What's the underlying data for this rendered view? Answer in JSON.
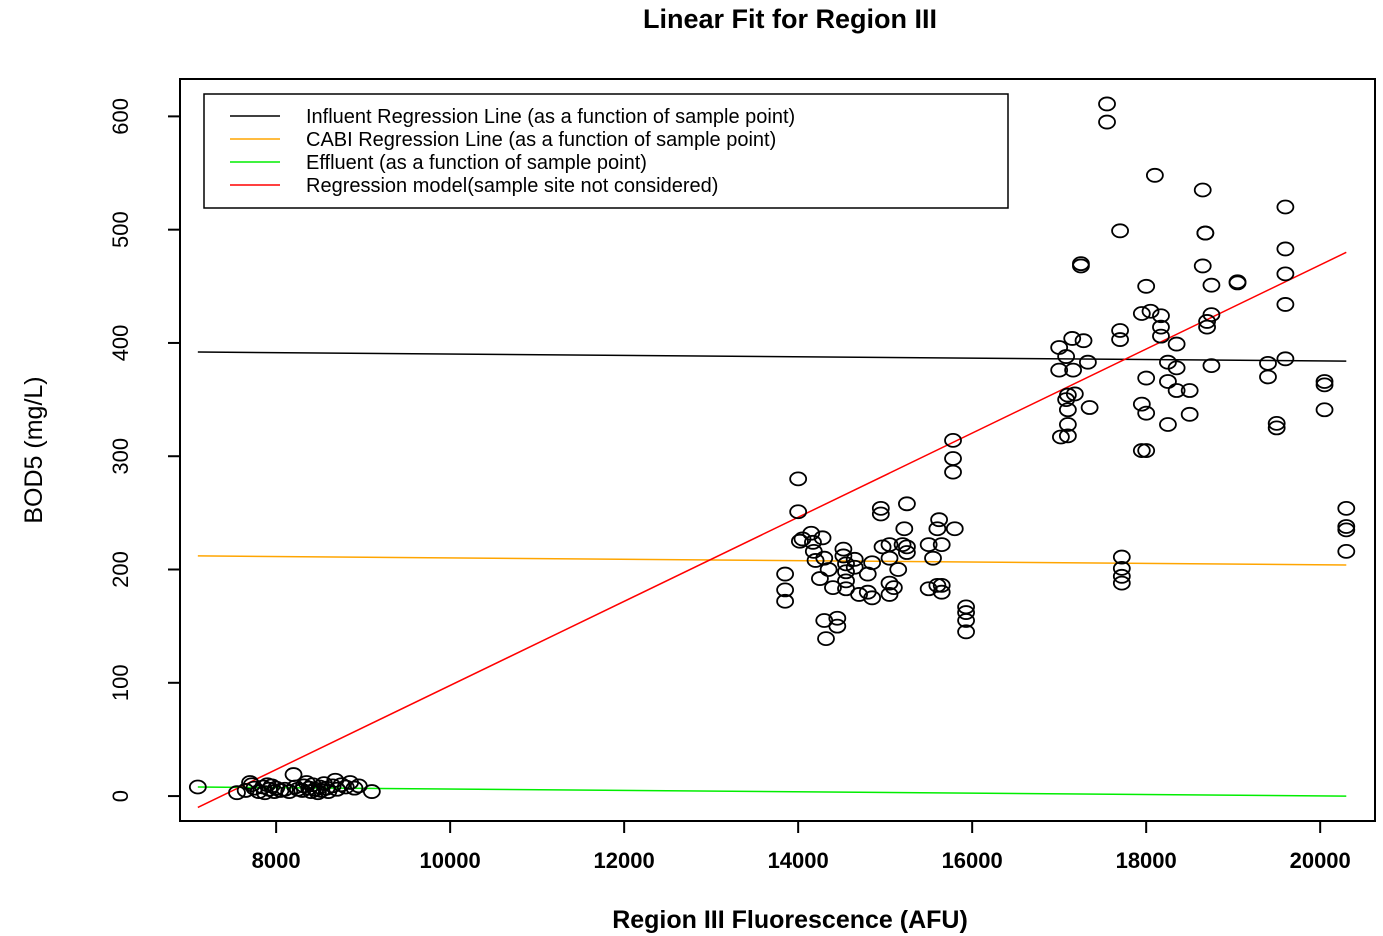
{
  "chart_data": {
    "type": "scatter",
    "title": "Linear Fit for Region III",
    "xlabel": "Region III Fluorescence (AFU)",
    "ylabel": "BOD5 (mg/L)",
    "xlim": [
      6900,
      20600
    ],
    "ylim": [
      -20,
      630
    ],
    "x_ticks": [
      8000,
      10000,
      12000,
      14000,
      16000,
      18000,
      20000
    ],
    "y_ticks": [
      0,
      100,
      200,
      300,
      400,
      500,
      600
    ],
    "grid": false,
    "legend_position": "top-left",
    "lines": [
      {
        "name": "Influent Regression Line (as a function of sample point)",
        "color": "#000000",
        "x": [
          7100,
          20300
        ],
        "y": [
          392,
          384
        ]
      },
      {
        "name": "CABI Regression Line (as a function of sample point)",
        "color": "#ffa500",
        "x": [
          7100,
          20300
        ],
        "y": [
          212,
          204
        ]
      },
      {
        "name": "Effluent (as a function of sample point)",
        "color": "#00ee00",
        "x": [
          7100,
          20300
        ],
        "y": [
          8,
          0
        ]
      },
      {
        "name": "Regression model(sample site not considered)",
        "color": "#ff0000",
        "x": [
          7100,
          20300
        ],
        "y": [
          -10,
          480
        ]
      }
    ],
    "points": [
      [
        7100,
        8
      ],
      [
        7550,
        3
      ],
      [
        7650,
        5
      ],
      [
        7700,
        12
      ],
      [
        7720,
        10
      ],
      [
        7750,
        7
      ],
      [
        7800,
        4
      ],
      [
        7850,
        8
      ],
      [
        7870,
        3
      ],
      [
        7900,
        10
      ],
      [
        7920,
        6
      ],
      [
        7950,
        9
      ],
      [
        7980,
        4
      ],
      [
        8000,
        7
      ],
      [
        8050,
        5
      ],
      [
        8100,
        6
      ],
      [
        8150,
        4
      ],
      [
        8200,
        19
      ],
      [
        8220,
        8
      ],
      [
        8250,
        6
      ],
      [
        8300,
        5
      ],
      [
        8320,
        9
      ],
      [
        8350,
        12
      ],
      [
        8380,
        7
      ],
      [
        8400,
        4
      ],
      [
        8420,
        10
      ],
      [
        8450,
        6
      ],
      [
        8480,
        3
      ],
      [
        8500,
        8
      ],
      [
        8520,
        5
      ],
      [
        8550,
        11
      ],
      [
        8580,
        7
      ],
      [
        8600,
        4
      ],
      [
        8650,
        9
      ],
      [
        8680,
        14
      ],
      [
        8700,
        6
      ],
      [
        8750,
        10
      ],
      [
        8800,
        8
      ],
      [
        8850,
        12
      ],
      [
        8900,
        7
      ],
      [
        8950,
        9
      ],
      [
        9100,
        4
      ],
      [
        13850,
        196
      ],
      [
        13850,
        182
      ],
      [
        13850,
        172
      ],
      [
        14000,
        280
      ],
      [
        14000,
        251
      ],
      [
        14020,
        225
      ],
      [
        14050,
        227
      ],
      [
        14150,
        232
      ],
      [
        14170,
        224
      ],
      [
        14180,
        216
      ],
      [
        14200,
        208
      ],
      [
        14250,
        192
      ],
      [
        14280,
        228
      ],
      [
        14300,
        210
      ],
      [
        14300,
        155
      ],
      [
        14320,
        139
      ],
      [
        14350,
        200
      ],
      [
        14400,
        184
      ],
      [
        14450,
        157
      ],
      [
        14450,
        150
      ],
      [
        14520,
        218
      ],
      [
        14520,
        212
      ],
      [
        14550,
        205
      ],
      [
        14550,
        198
      ],
      [
        14550,
        190
      ],
      [
        14550,
        183
      ],
      [
        14650,
        209
      ],
      [
        14650,
        202
      ],
      [
        14700,
        178
      ],
      [
        14800,
        196
      ],
      [
        14800,
        180
      ],
      [
        14850,
        206
      ],
      [
        14850,
        175
      ],
      [
        14950,
        254
      ],
      [
        14950,
        249
      ],
      [
        14970,
        220
      ],
      [
        15050,
        222
      ],
      [
        15050,
        210
      ],
      [
        15050,
        188
      ],
      [
        15050,
        178
      ],
      [
        15100,
        184
      ],
      [
        15150,
        200
      ],
      [
        15200,
        222
      ],
      [
        15220,
        236
      ],
      [
        15250,
        258
      ],
      [
        15250,
        220
      ],
      [
        15250,
        215
      ],
      [
        15500,
        222
      ],
      [
        15500,
        183
      ],
      [
        15550,
        210
      ],
      [
        15600,
        236
      ],
      [
        15600,
        186
      ],
      [
        15620,
        244
      ],
      [
        15650,
        222
      ],
      [
        15650,
        186
      ],
      [
        15650,
        180
      ],
      [
        15780,
        314
      ],
      [
        15780,
        298
      ],
      [
        15780,
        286
      ],
      [
        15800,
        236
      ],
      [
        15930,
        167
      ],
      [
        15930,
        162
      ],
      [
        15930,
        155
      ],
      [
        15930,
        145
      ],
      [
        17000,
        396
      ],
      [
        17000,
        376
      ],
      [
        17020,
        317
      ],
      [
        17080,
        388
      ],
      [
        17080,
        350
      ],
      [
        17100,
        354
      ],
      [
        17100,
        341
      ],
      [
        17100,
        328
      ],
      [
        17100,
        318
      ],
      [
        17150,
        404
      ],
      [
        17160,
        376
      ],
      [
        17180,
        355
      ],
      [
        17250,
        470
      ],
      [
        17250,
        468
      ],
      [
        17280,
        402
      ],
      [
        17330,
        383
      ],
      [
        17350,
        343
      ],
      [
        17550,
        611
      ],
      [
        17550,
        595
      ],
      [
        17700,
        499
      ],
      [
        17700,
        411
      ],
      [
        17700,
        403
      ],
      [
        17720,
        211
      ],
      [
        17720,
        201
      ],
      [
        17720,
        194
      ],
      [
        17720,
        188
      ],
      [
        17950,
        426
      ],
      [
        17950,
        346
      ],
      [
        17950,
        305
      ],
      [
        18000,
        450
      ],
      [
        18000,
        369
      ],
      [
        18000,
        338
      ],
      [
        18000,
        305
      ],
      [
        18050,
        428
      ],
      [
        18100,
        548
      ],
      [
        18170,
        424
      ],
      [
        18170,
        414
      ],
      [
        18170,
        406
      ],
      [
        18250,
        383
      ],
      [
        18250,
        366
      ],
      [
        18250,
        328
      ],
      [
        18350,
        378
      ],
      [
        18350,
        358
      ],
      [
        18350,
        399
      ],
      [
        18500,
        358
      ],
      [
        18500,
        337
      ],
      [
        18650,
        535
      ],
      [
        18650,
        468
      ],
      [
        18680,
        497
      ],
      [
        18680,
        497
      ],
      [
        18700,
        419
      ],
      [
        18700,
        414
      ],
      [
        18750,
        451
      ],
      [
        18750,
        425
      ],
      [
        18750,
        380
      ],
      [
        19050,
        454
      ],
      [
        19050,
        453
      ],
      [
        19400,
        382
      ],
      [
        19400,
        370
      ],
      [
        19500,
        329
      ],
      [
        19500,
        325
      ],
      [
        19600,
        520
      ],
      [
        19600,
        483
      ],
      [
        19600,
        461
      ],
      [
        19600,
        434
      ],
      [
        19600,
        386
      ],
      [
        20050,
        366
      ],
      [
        20050,
        363
      ],
      [
        20050,
        341
      ],
      [
        20300,
        254
      ],
      [
        20300,
        238
      ],
      [
        20300,
        235
      ],
      [
        20300,
        216
      ]
    ]
  }
}
